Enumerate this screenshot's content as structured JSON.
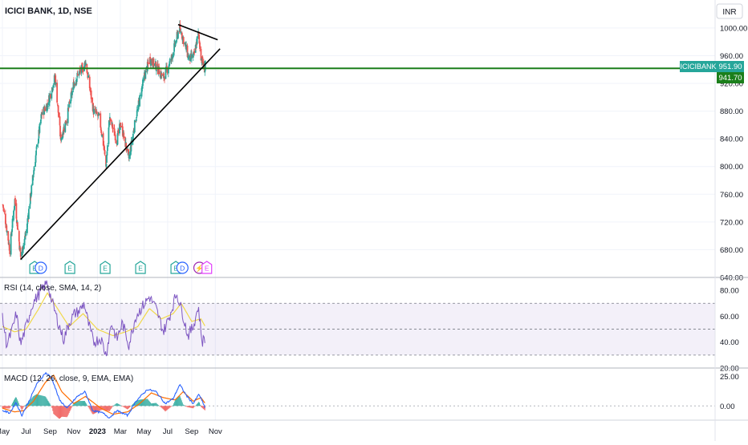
{
  "header": {
    "symbol_title": "ICICI BANK, 1D, NSE",
    "currency": "INR"
  },
  "colors": {
    "up": "#26a69a",
    "down": "#ef5350",
    "support": "#1b7f1b",
    "trend": "#000000",
    "rsi": "#7e57c2",
    "rsi_ma": "#f0d84a",
    "macd": "#2962ff",
    "signal": "#ff6d00",
    "rsi_band": "#7e57c2",
    "badge_e": "#26a69a",
    "badge_d": "#2962ff",
    "badge_split": "#9c27b0",
    "badge_e_future": "#e040fb"
  },
  "chart_data": [
    {
      "type": "candlestick",
      "symbol": "ICICIBANK",
      "title": "ICICI BANK, 1D, NSE",
      "price_scale": {
        "ticks": [
          "1000.00",
          "960.00",
          "920.00",
          "880.00",
          "840.00",
          "800.00",
          "760.00",
          "720.00",
          "680.00",
          "640.00"
        ],
        "range": [
          640,
          1030
        ]
      },
      "last_price_label": {
        "name": "ICICIBANK",
        "value": "951.90"
      },
      "level_label": {
        "value": "941.70"
      },
      "x_axis": {
        "ticks": [
          "May",
          "Jul",
          "Sep",
          "Nov",
          "2023",
          "Mar",
          "May",
          "Jul",
          "Sep",
          "Nov"
        ]
      },
      "ohlc_anchors": [
        [
          "2022-05-02",
          745
        ],
        [
          "2022-05-10",
          718
        ],
        [
          "2022-05-20",
          680
        ],
        [
          "2022-06-02",
          752
        ],
        [
          "2022-06-17",
          670
        ],
        [
          "2022-07-01",
          705
        ],
        [
          "2022-07-22",
          800
        ],
        [
          "2022-08-10",
          875
        ],
        [
          "2022-08-25",
          890
        ],
        [
          "2022-09-14",
          930
        ],
        [
          "2022-09-28",
          840
        ],
        [
          "2022-10-14",
          870
        ],
        [
          "2022-11-01",
          920
        ],
        [
          "2022-11-14",
          935
        ],
        [
          "2022-11-28",
          945
        ],
        [
          "2022-12-01",
          952
        ],
        [
          "2022-12-22",
          880
        ],
        [
          "2023-01-06",
          870
        ],
        [
          "2023-01-17",
          830
        ],
        [
          "2023-01-23",
          800
        ],
        [
          "2023-02-01",
          870
        ],
        [
          "2023-02-20",
          838
        ],
        [
          "2023-03-02",
          862
        ],
        [
          "2023-03-23",
          812
        ],
        [
          "2023-04-10",
          870
        ],
        [
          "2023-05-02",
          930
        ],
        [
          "2023-05-16",
          955
        ],
        [
          "2023-06-01",
          945
        ],
        [
          "2023-06-20",
          928
        ],
        [
          "2023-07-10",
          955
        ],
        [
          "2023-07-31",
          1000
        ],
        [
          "2023-08-10",
          985
        ],
        [
          "2023-08-25",
          955
        ],
        [
          "2023-09-07",
          960
        ],
        [
          "2023-09-18",
          992
        ],
        [
          "2023-09-26",
          955
        ],
        [
          "2023-10-05",
          940
        ],
        [
          "2023-10-06",
          952
        ]
      ],
      "lines": [
        {
          "name": "support",
          "y": 941.7
        },
        {
          "name": "rising-trendline",
          "from": [
            "2022-06-17",
            666
          ],
          "to": [
            "2023-11-13",
            970
          ]
        },
        {
          "name": "falling-trendline",
          "from": [
            "2023-07-28",
            1005
          ],
          "to": [
            "2023-11-07",
            983
          ]
        }
      ],
      "events": [
        {
          "type": "E",
          "date": "2022-07-23"
        },
        {
          "type": "D",
          "date": "2022-08-08"
        },
        {
          "type": "E",
          "date": "2022-10-22"
        },
        {
          "type": "E",
          "date": "2023-01-21"
        },
        {
          "type": "E",
          "date": "2023-04-22"
        },
        {
          "type": "E",
          "date": "2023-07-22"
        },
        {
          "type": "D",
          "date": "2023-08-08"
        },
        {
          "type": "split",
          "date": "2023-09-21"
        },
        {
          "type": "E",
          "date": "2023-10-10"
        }
      ]
    },
    {
      "type": "line",
      "title": "RSI (14, close, SMA, 14, 2)",
      "ticks": [
        "80.00",
        "60.00",
        "40.00",
        "20.00"
      ],
      "range": [
        20,
        90
      ],
      "bands": [
        30,
        50,
        70
      ],
      "series": [
        {
          "anchors": [
            [
              "2022-05-02",
              58
            ],
            [
              "2022-05-12",
              38
            ],
            [
              "2022-05-25",
              48
            ],
            [
              "2022-06-06",
              62
            ],
            [
              "2022-06-17",
              38
            ],
            [
              "2022-07-01",
              52
            ],
            [
              "2022-07-18",
              70
            ],
            [
              "2022-08-01",
              76
            ],
            [
              "2022-08-15",
              82
            ],
            [
              "2022-08-25",
              86
            ],
            [
              "2022-09-05",
              72
            ],
            [
              "2022-09-22",
              55
            ],
            [
              "2022-10-06",
              42
            ],
            [
              "2022-10-20",
              55
            ],
            [
              "2022-11-03",
              62
            ],
            [
              "2022-11-15",
              64
            ],
            [
              "2022-11-28",
              70
            ],
            [
              "2022-12-08",
              55
            ],
            [
              "2022-12-22",
              40
            ],
            [
              "2023-01-10",
              43
            ],
            [
              "2023-01-23",
              30
            ],
            [
              "2023-02-06",
              55
            ],
            [
              "2023-02-20",
              42
            ],
            [
              "2023-03-06",
              55
            ],
            [
              "2023-03-23",
              38
            ],
            [
              "2023-04-10",
              60
            ],
            [
              "2023-04-28",
              68
            ],
            [
              "2023-05-15",
              75
            ],
            [
              "2023-06-01",
              66
            ],
            [
              "2023-06-20",
              48
            ],
            [
              "2023-07-06",
              60
            ],
            [
              "2023-07-24",
              78
            ],
            [
              "2023-08-08",
              63
            ],
            [
              "2023-08-22",
              45
            ],
            [
              "2023-09-05",
              52
            ],
            [
              "2023-09-18",
              68
            ],
            [
              "2023-09-28",
              40
            ],
            [
              "2023-10-06",
              44
            ]
          ]
        },
        {
          "anchors": [
            [
              "2022-05-02",
              52
            ],
            [
              "2022-06-01",
              48
            ],
            [
              "2022-07-01",
              50
            ],
            [
              "2022-08-01",
              65
            ],
            [
              "2022-08-25",
              78
            ],
            [
              "2022-09-20",
              66
            ],
            [
              "2022-10-20",
              52
            ],
            [
              "2022-11-25",
              62
            ],
            [
              "2023-01-01",
              50
            ],
            [
              "2023-02-10",
              45
            ],
            [
              "2023-03-15",
              48
            ],
            [
              "2023-04-15",
              52
            ],
            [
              "2023-05-15",
              66
            ],
            [
              "2023-06-15",
              58
            ],
            [
              "2023-07-15",
              62
            ],
            [
              "2023-08-05",
              70
            ],
            [
              "2023-09-01",
              56
            ],
            [
              "2023-09-25",
              58
            ],
            [
              "2023-10-06",
              52
            ]
          ]
        }
      ]
    },
    {
      "type": "line",
      "title": "MACD (12, 26, close, 9, EMA, EMA)",
      "ticks": [
        "25.00",
        "0.00"
      ],
      "range": [
        -12,
        32
      ],
      "series": [
        {
          "anchors": [
            [
              "2022-05-02",
              -4
            ],
            [
              "2022-05-20",
              -6
            ],
            [
              "2022-06-05",
              3
            ],
            [
              "2022-06-20",
              -8
            ],
            [
              "2022-07-10",
              5
            ],
            [
              "2022-07-28",
              18
            ],
            [
              "2022-08-20",
              28
            ],
            [
              "2022-09-05",
              24
            ],
            [
              "2022-09-25",
              5
            ],
            [
              "2022-10-15",
              -2
            ],
            [
              "2022-11-10",
              8
            ],
            [
              "2022-11-30",
              12
            ],
            [
              "2022-12-20",
              -4
            ],
            [
              "2023-01-15",
              -6
            ],
            [
              "2023-02-01",
              -10
            ],
            [
              "2023-02-20",
              -4
            ],
            [
              "2023-03-20",
              -8
            ],
            [
              "2023-04-10",
              4
            ],
            [
              "2023-05-10",
              14
            ],
            [
              "2023-06-01",
              12
            ],
            [
              "2023-06-25",
              2
            ],
            [
              "2023-07-15",
              6
            ],
            [
              "2023-08-01",
              18
            ],
            [
              "2023-08-20",
              8
            ],
            [
              "2023-09-05",
              2
            ],
            [
              "2023-09-20",
              10
            ],
            [
              "2023-10-06",
              -2
            ]
          ]
        },
        {
          "anchors": [
            [
              "2022-05-02",
              -2
            ],
            [
              "2022-06-01",
              -5
            ],
            [
              "2022-06-25",
              -4
            ],
            [
              "2022-07-20",
              4
            ],
            [
              "2022-08-20",
              20
            ],
            [
              "2022-09-10",
              26
            ],
            [
              "2022-10-01",
              12
            ],
            [
              "2022-11-01",
              2
            ],
            [
              "2022-12-01",
              8
            ],
            [
              "2023-01-10",
              -2
            ],
            [
              "2023-02-10",
              -7
            ],
            [
              "2023-03-20",
              -5
            ],
            [
              "2023-04-20",
              2
            ],
            [
              "2023-05-20",
              11
            ],
            [
              "2023-06-20",
              7
            ],
            [
              "2023-07-20",
              5
            ],
            [
              "2023-08-10",
              12
            ],
            [
              "2023-09-05",
              4
            ],
            [
              "2023-09-25",
              7
            ],
            [
              "2023-10-06",
              2
            ]
          ]
        }
      ]
    }
  ]
}
